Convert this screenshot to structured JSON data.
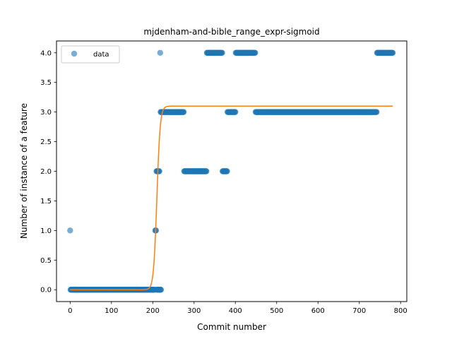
{
  "chart_data": {
    "type": "scatter",
    "title": "mjdenham-and-bible_range_expr-sigmoid",
    "xlabel": "Commit number",
    "ylabel": "Number of instance of a feature",
    "xlim": [
      -33,
      815
    ],
    "ylim": [
      -0.2,
      4.2
    ],
    "xticks": [
      0,
      100,
      200,
      300,
      400,
      500,
      600,
      700,
      800
    ],
    "yticks": [
      0.0,
      0.5,
      1.0,
      1.5,
      2.0,
      2.5,
      3.0,
      3.5,
      4.0
    ],
    "xtick_labels": [
      "0",
      "100",
      "200",
      "300",
      "400",
      "500",
      "600",
      "700",
      "800"
    ],
    "ytick_labels": [
      "0.0",
      "0.5",
      "1.0",
      "1.5",
      "2.0",
      "2.5",
      "3.0",
      "3.5",
      "4.0"
    ],
    "grid": false,
    "legend": {
      "position": "top-left",
      "entries": [
        "data"
      ]
    },
    "colors": {
      "scatter": "#1f77b4",
      "fit": "#ff7f0e"
    },
    "series": [
      {
        "name": "data",
        "kind": "scatter",
        "segments": [
          {
            "x_start": 0,
            "x_end": 0,
            "y": 1
          },
          {
            "x_start": 1,
            "x_end": 205,
            "y": 0
          },
          {
            "x_start": 206,
            "x_end": 208,
            "y": 1
          },
          {
            "x_start": 209,
            "x_end": 216,
            "y": 2
          },
          {
            "x_start": 210,
            "x_end": 220,
            "y": 0
          },
          {
            "x_start": 218,
            "x_end": 218,
            "y": 4
          },
          {
            "x_start": 219,
            "x_end": 275,
            "y": 3
          },
          {
            "x_start": 276,
            "x_end": 330,
            "y": 2
          },
          {
            "x_start": 331,
            "x_end": 368,
            "y": 4
          },
          {
            "x_start": 369,
            "x_end": 380,
            "y": 2
          },
          {
            "x_start": 381,
            "x_end": 400,
            "y": 3
          },
          {
            "x_start": 401,
            "x_end": 448,
            "y": 4
          },
          {
            "x_start": 449,
            "x_end": 742,
            "y": 3
          },
          {
            "x_start": 743,
            "x_end": 781,
            "y": 4
          }
        ]
      },
      {
        "name": "",
        "kind": "line",
        "sigmoid": {
          "L": 3.1,
          "x0": 210,
          "k": 0.25,
          "x_min": 0,
          "x_max": 781
        }
      }
    ]
  }
}
